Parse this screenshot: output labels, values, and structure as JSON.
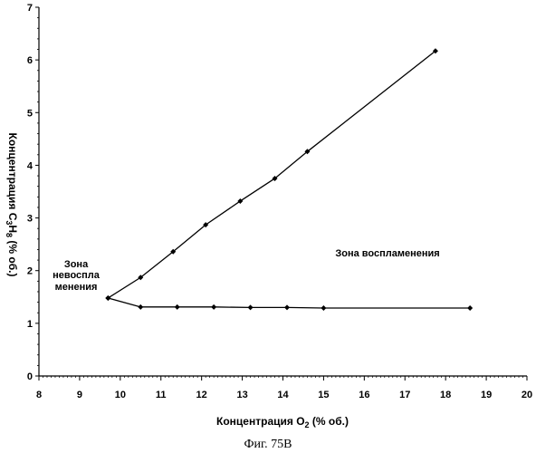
{
  "chart_data": {
    "type": "line",
    "xlabel": "Концентрация O",
    "xlabel_sub": "2",
    "xlabel_tail": " (% об.)",
    "ylabel_parts": [
      "Концентрация C",
      "3",
      "H",
      "8",
      " (% об.)"
    ],
    "xlim": [
      8,
      20
    ],
    "ylim": [
      0,
      7
    ],
    "x_ticks": [
      "8",
      "9",
      "10",
      "11",
      "12",
      "13",
      "14",
      "15",
      "16",
      "17",
      "18",
      "19",
      "20"
    ],
    "y_ticks": [
      "0",
      "1",
      "2",
      "3",
      "4",
      "5",
      "6",
      "7"
    ],
    "series": [
      {
        "values": [
          [
            9.7,
            1.48
          ],
          [
            10.5,
            1.87
          ],
          [
            11.3,
            2.36
          ],
          [
            12.1,
            2.87
          ],
          [
            12.95,
            3.32
          ],
          [
            13.8,
            3.75
          ],
          [
            14.6,
            4.26
          ],
          [
            17.75,
            6.17
          ]
        ]
      },
      {
        "values": [
          [
            9.7,
            1.48
          ],
          [
            10.5,
            1.31
          ],
          [
            11.4,
            1.31
          ],
          [
            12.3,
            1.31
          ],
          [
            13.2,
            1.3
          ],
          [
            14.1,
            1.3
          ],
          [
            15.0,
            1.29
          ],
          [
            18.6,
            1.29
          ]
        ]
      }
    ],
    "annotations": {
      "left_zone_line1": "Зона",
      "left_zone_line2": "невоспла",
      "left_zone_line3": "менения",
      "right_zone": "Зона воспламенения"
    },
    "grid": false,
    "legend": "none"
  },
  "caption": "Фиг. 75В"
}
